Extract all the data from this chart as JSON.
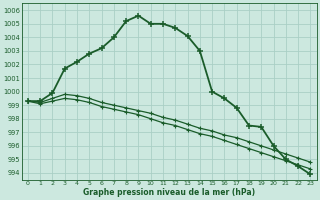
{
  "title": "Graphe pression niveau de la mer (hPa)",
  "background_color": "#cce8df",
  "grid_color": "#aacfc5",
  "line_color": "#1a5c2a",
  "xlim": [
    -0.5,
    23.5
  ],
  "ylim": [
    993.5,
    1006.5
  ],
  "yticks": [
    994,
    995,
    996,
    997,
    998,
    999,
    1000,
    1001,
    1002,
    1003,
    1004,
    1005,
    1006
  ],
  "xticks": [
    0,
    1,
    2,
    3,
    4,
    5,
    6,
    7,
    8,
    9,
    10,
    11,
    12,
    13,
    14,
    15,
    16,
    17,
    18,
    19,
    20,
    21,
    22,
    23
  ],
  "series": [
    [
      999.3,
      999.3,
      999.9,
      1001.7,
      1002.2,
      1002.8,
      1003.2,
      1004.0,
      1005.2,
      1005.6,
      1005.0,
      1005.0,
      1004.7,
      1004.1,
      1003.0,
      1000.0,
      999.5,
      998.8,
      997.5,
      997.4,
      996.0,
      995.0,
      994.5,
      993.9
    ],
    [
      999.3,
      999.2,
      999.5,
      999.8,
      999.7,
      999.5,
      999.2,
      999.0,
      998.8,
      998.6,
      998.4,
      998.1,
      997.9,
      997.6,
      997.3,
      997.1,
      996.8,
      996.6,
      996.3,
      996.0,
      995.7,
      995.4,
      995.1,
      994.8
    ],
    [
      999.3,
      999.1,
      999.3,
      999.5,
      999.4,
      999.2,
      998.9,
      998.7,
      998.5,
      998.3,
      998.0,
      997.7,
      997.5,
      997.2,
      996.9,
      996.7,
      996.4,
      996.1,
      995.8,
      995.5,
      995.2,
      994.9,
      994.6,
      994.3
    ]
  ]
}
